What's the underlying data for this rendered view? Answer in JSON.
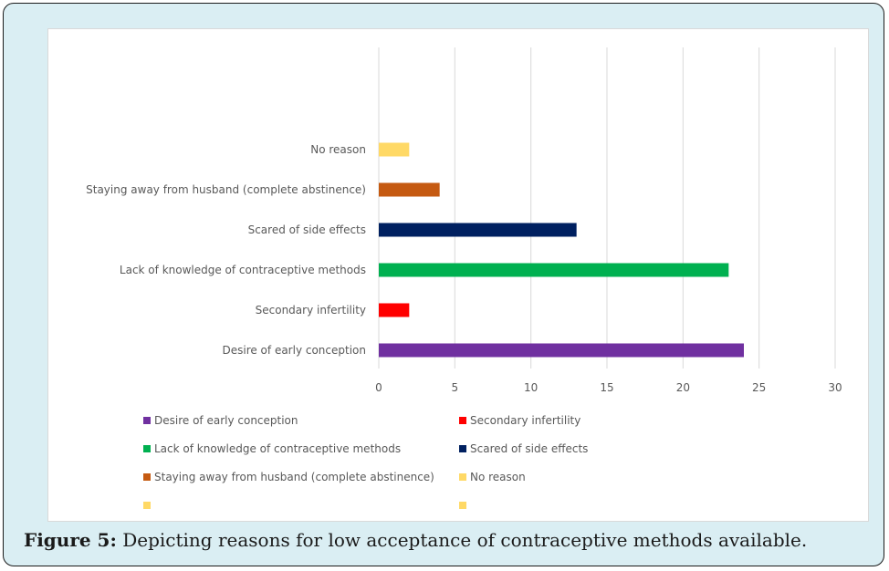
{
  "chart_data": {
    "type": "bar",
    "orientation": "horizontal",
    "categories": [
      "Desire of early conception",
      "Secondary infertility",
      "Lack of knowledge of contraceptive methods",
      "Scared of side effects",
      "Staying away from husband (complete abstinence)",
      "No reason"
    ],
    "values": [
      24,
      2,
      23,
      13,
      4,
      2
    ],
    "colors": [
      "#7030a0",
      "#ff0000",
      "#00b050",
      "#002060",
      "#c55a11",
      "#ffd966"
    ],
    "xlim": [
      0,
      30
    ],
    "xticks": [
      "0",
      "5",
      "10",
      "15",
      "20",
      "25",
      "30"
    ],
    "grid": "vertical",
    "legend_position": "bottom",
    "title": "",
    "xlabel": "",
    "ylabel": ""
  },
  "legend": [
    {
      "label": "Desire of early conception",
      "color": "#7030a0"
    },
    {
      "label": "Secondary infertility",
      "color": "#ff0000"
    },
    {
      "label": "Lack of knowledge of contraceptive methods",
      "color": "#00b050"
    },
    {
      "label": "Scared of side effects",
      "color": "#002060"
    },
    {
      "label": "Staying away from husband (complete abstinence)",
      "color": "#c55a11"
    },
    {
      "label": "No reason",
      "color": "#ffd966"
    },
    {
      "label": "",
      "color": "#ffd966"
    },
    {
      "label": "",
      "color": "#ffd966"
    }
  ],
  "caption": {
    "label": "Figure 5:",
    "text": " Depicting reasons for low acceptance of contraceptive methods available."
  }
}
